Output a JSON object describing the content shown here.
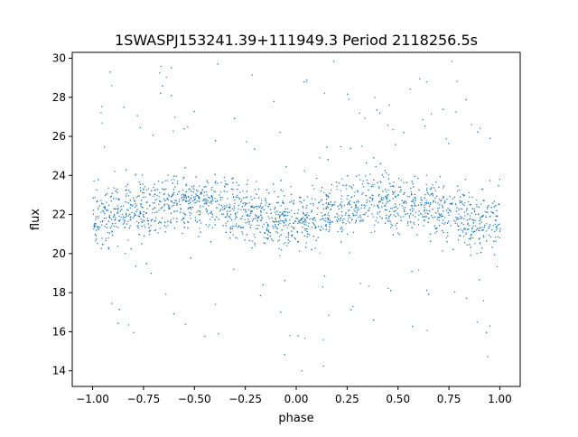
{
  "chart_data": {
    "type": "scatter",
    "title": "1SWASPJ153241.39+111949.3 Period 2118256.5s",
    "xlabel": "phase",
    "ylabel": "flux",
    "xlim": [
      -1.1,
      1.1
    ],
    "ylim": [
      13.2,
      30.3
    ],
    "xticks": [
      -1.0,
      -0.75,
      -0.5,
      -0.25,
      0.0,
      0.25,
      0.5,
      0.75,
      1.0
    ],
    "xtick_labels": [
      "−1.00",
      "−0.75",
      "−0.50",
      "−0.25",
      "0.00",
      "0.25",
      "0.50",
      "0.75",
      "1.00"
    ],
    "yticks": [
      14,
      16,
      18,
      20,
      22,
      24,
      26,
      28,
      30
    ],
    "ytick_labels": [
      "14",
      "16",
      "18",
      "20",
      "22",
      "24",
      "26",
      "28",
      "30"
    ],
    "grid": false,
    "marker_color": "#1f77b4",
    "series": [
      {
        "phase_profile_x": [
          -1.0,
          -0.9,
          -0.8,
          -0.7,
          -0.6,
          -0.5,
          -0.4,
          -0.3,
          -0.2,
          -0.1,
          0.0,
          0.1,
          0.2,
          0.3,
          0.4,
          0.5,
          0.6,
          0.7,
          0.8,
          0.9,
          1.0
        ],
        "median_flux": [
          21.8,
          22.0,
          22.3,
          22.5,
          22.6,
          22.5,
          22.6,
          22.4,
          22.0,
          21.8,
          21.8,
          22.0,
          22.3,
          22.5,
          22.6,
          22.5,
          22.6,
          22.4,
          22.0,
          21.8,
          21.8
        ],
        "flux_spread": 1.3
      }
    ]
  }
}
